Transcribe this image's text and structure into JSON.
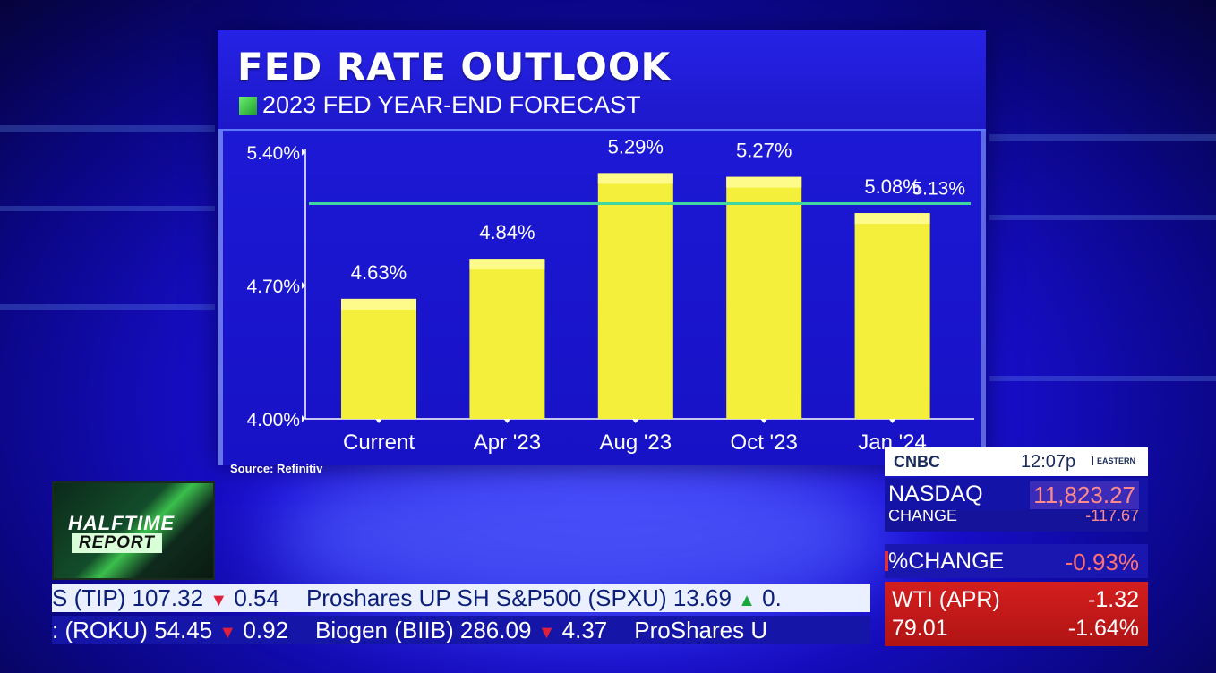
{
  "chart_data": {
    "type": "bar",
    "title": "FED RATE OUTLOOK",
    "subtitle": "2023 FED YEAR-END FORECAST",
    "categories": [
      "Current",
      "Apr '23",
      "Aug '23",
      "Oct '23",
      "Jan '24"
    ],
    "values": [
      4.63,
      4.84,
      5.29,
      5.27,
      5.08
    ],
    "value_labels": [
      "4.63%",
      "4.84%",
      "5.29%",
      "5.27%",
      "5.08%"
    ],
    "yticks": [
      "4.00%",
      "4.70%",
      "5.40%"
    ],
    "ytick_values": [
      4.0,
      4.7,
      5.4
    ],
    "ylim": [
      4.0,
      5.4
    ],
    "reference_line": {
      "value": 5.13,
      "label": "5.13%"
    },
    "bar_color": "#f3ef3a",
    "line_color": "#3fd6a0",
    "grid": false
  },
  "source": "Source: Refinitiv",
  "logo": {
    "line1": "HALFTIME",
    "line2": "REPORT"
  },
  "ticker_top": [
    {
      "text": "S (TIP) 107.32",
      "dir": "down",
      "change": "0.54"
    },
    {
      "text": "Proshares UP SH S&P500 (SPXU) 13.69",
      "dir": "up",
      "change": "0."
    }
  ],
  "ticker_bottom": [
    {
      "text": ": (ROKU) 54.45",
      "dir": "down",
      "change": "0.92"
    },
    {
      "text": "Biogen (BIIB) 286.09",
      "dir": "down",
      "change": "4.37"
    },
    {
      "text": "ProShares U",
      "dir": "",
      "change": ""
    }
  ],
  "network": {
    "logo": "CNBC",
    "time": "12:07p",
    "timezone": "EASTERN"
  },
  "index": {
    "name": "NASDAQ",
    "value": "11,823.27",
    "change_label": "CHANGE",
    "change_value": "-117.67"
  },
  "percent_change": {
    "label": "%CHANGE",
    "value": "-0.93%"
  },
  "oil": {
    "label": "WTI (APR)",
    "change": "-1.32",
    "price": "79.01",
    "pct": "-1.64%"
  },
  "colors": {
    "panel": "#1a15cc",
    "negative": "#ff7070",
    "alert": "#d41e1e"
  }
}
